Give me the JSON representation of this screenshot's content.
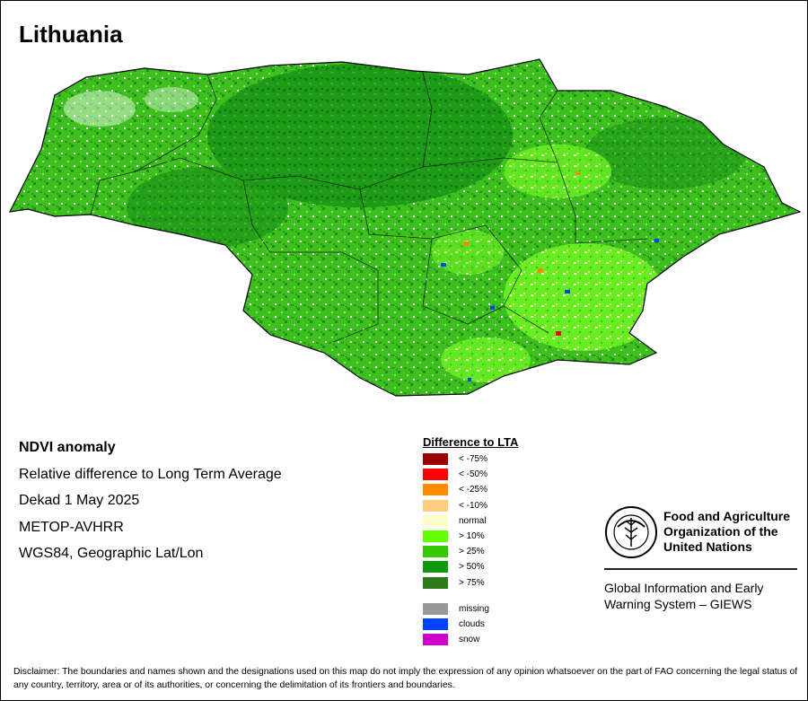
{
  "title": "Lithuania",
  "info": {
    "heading": "NDVI anomaly",
    "line1": "Relative difference to Long Term Average",
    "line2": "Dekad 1 May 2025",
    "line3": "METOP-AVHRR",
    "line4": "WGS84, Geographic Lat/Lon"
  },
  "legend": {
    "title": "Difference to LTA",
    "items": [
      {
        "label": "< -75%",
        "color": "#990000"
      },
      {
        "label": "< -50%",
        "color": "#ff0000"
      },
      {
        "label": "< -25%",
        "color": "#ff8c00"
      },
      {
        "label": "< -10%",
        "color": "#ffcc80"
      },
      {
        "label": "normal",
        "color": "#ffffcc"
      },
      {
        "label": "> 10%",
        "color": "#66ff00"
      },
      {
        "label": "> 25%",
        "color": "#33cc00"
      },
      {
        "label": "> 50%",
        "color": "#119911"
      },
      {
        "label": "> 75%",
        "color": "#2d7a1a"
      }
    ],
    "extra": [
      {
        "label": "missing",
        "color": "#999999"
      },
      {
        "label": "clouds",
        "color": "#0044ff"
      },
      {
        "label": "snow",
        "color": "#cc00cc"
      }
    ]
  },
  "fao": {
    "logo_text": "FAO",
    "logo_motto": "FIAT PANIS",
    "name_line1": "Food and Agriculture",
    "name_line2": "Organization of the",
    "name_line3": "United Nations",
    "giews_line1": "Global Information and Early",
    "giews_line2": "Warning System – GIEWS"
  },
  "disclaimer": "Disclaimer: The boundaries and names shown and the designations used on this map do not imply the expression of any opinion whatsoever on the part of FAO concerning the legal status of any country, territory, area or of its authorities, or concerning the delimitation of its frontiers and boundaries."
}
